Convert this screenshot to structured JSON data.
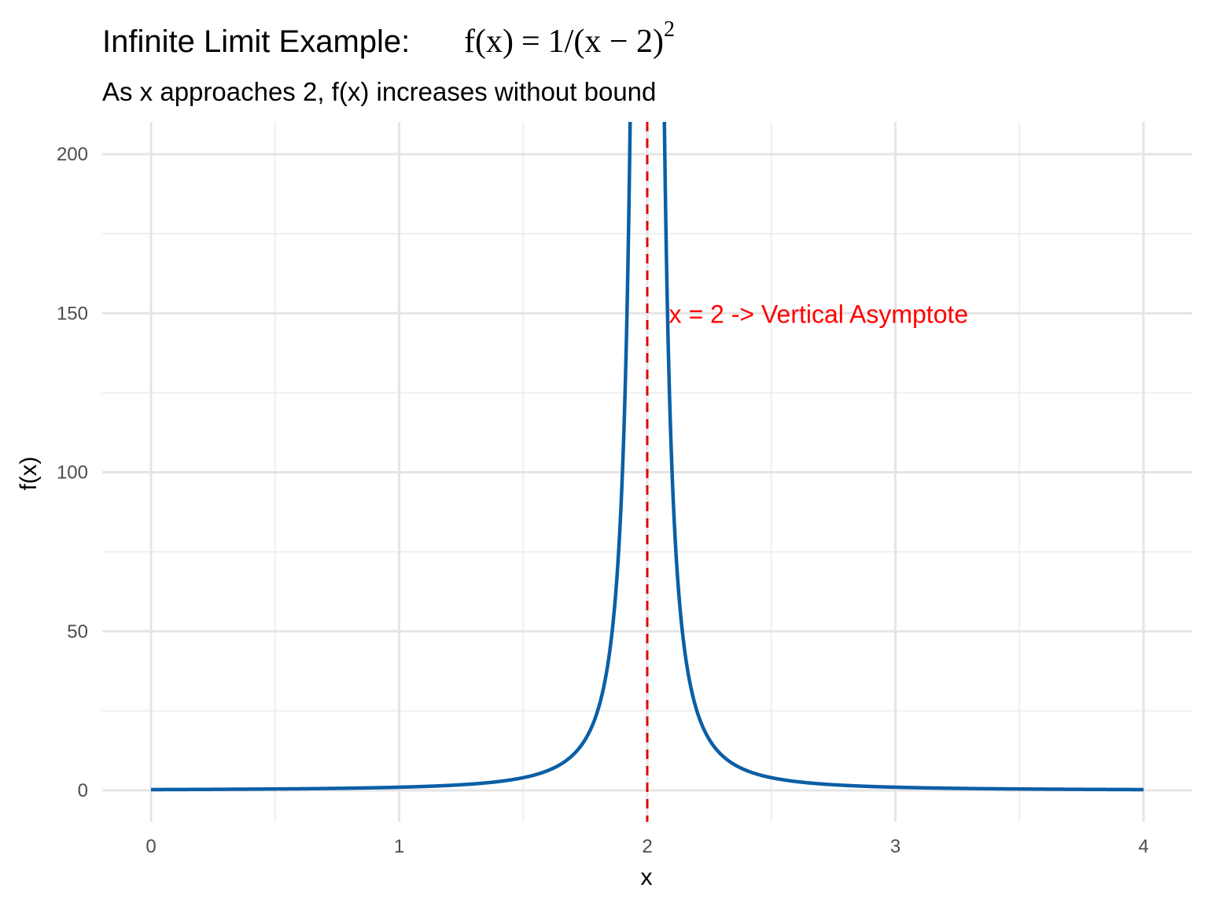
{
  "chart_data": {
    "type": "line",
    "title_prefix": "Infinite Limit Example:",
    "title_formula": {
      "lhs": "f(x)",
      "eq": "=",
      "numerator": "1",
      "slash": "/",
      "denominator": "(x − 2)",
      "exponent": "2"
    },
    "subtitle": "As x approaches 2, f(x) increases without bound",
    "xlabel": "x",
    "ylabel": "f(x)",
    "xlim": [
      -0.2,
      4.2
    ],
    "ylim": [
      -9,
      210
    ],
    "x_ticks": [
      0,
      1,
      2,
      3,
      4
    ],
    "y_ticks": [
      0,
      50,
      100,
      150,
      200
    ],
    "grid": true,
    "series": [
      {
        "function": "1/(x-2)^2",
        "domain": [
          0,
          4
        ],
        "color": "#0b5fa5"
      }
    ],
    "asymptote": {
      "x": 2,
      "color": "#e00000",
      "style": "dashed"
    },
    "annotation": {
      "text": "x = 2 -> Vertical Asymptote",
      "x": 2.1,
      "y": 150,
      "color": "#ff0000"
    }
  }
}
